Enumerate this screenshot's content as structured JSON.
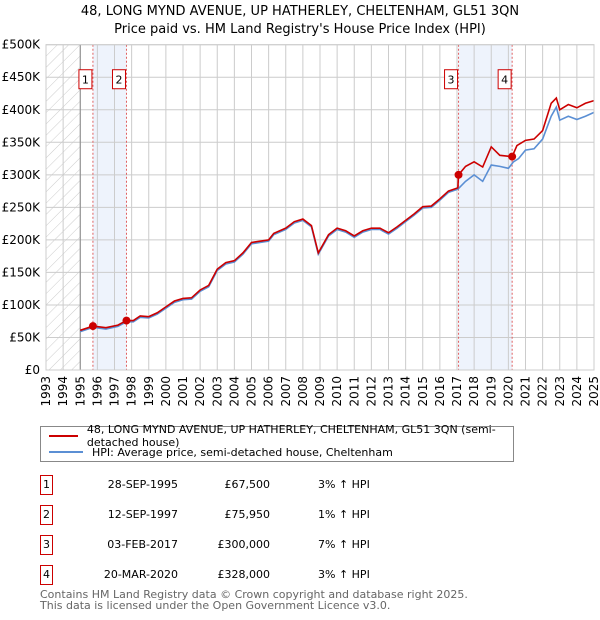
{
  "title_line1": "48, LONG MYND AVENUE, UP HATHERLEY, CHELTENHAM, GL51 3QN",
  "title_line2": "Price paid vs. HM Land Registry's House Price Index (HPI)",
  "chart_data": {
    "type": "line",
    "xlim": [
      1993,
      2025
    ],
    "ylim": [
      0,
      500000
    ],
    "yticks": [
      {
        "v": 0,
        "label": "£0"
      },
      {
        "v": 50000,
        "label": "£50K"
      },
      {
        "v": 100000,
        "label": "£100K"
      },
      {
        "v": 150000,
        "label": "£150K"
      },
      {
        "v": 200000,
        "label": "£200K"
      },
      {
        "v": 250000,
        "label": "£250K"
      },
      {
        "v": 300000,
        "label": "£300K"
      },
      {
        "v": 350000,
        "label": "£350K"
      },
      {
        "v": 400000,
        "label": "£400K"
      },
      {
        "v": 450000,
        "label": "£450K"
      },
      {
        "v": 500000,
        "label": "£500K"
      }
    ],
    "xticks": [
      "1993",
      "1994",
      "1995",
      "1996",
      "1997",
      "1998",
      "1999",
      "2000",
      "2001",
      "2002",
      "2003",
      "2004",
      "2005",
      "2006",
      "2007",
      "2008",
      "2009",
      "2010",
      "2011",
      "2012",
      "2013",
      "2014",
      "2015",
      "2016",
      "2017",
      "2018",
      "2019",
      "2020",
      "2021",
      "2022",
      "2023",
      "2024",
      "2025"
    ],
    "grid": true,
    "series": [
      {
        "name": "48, LONG MYND AVENUE, UP HATHERLEY, CHELTENHAM, GL51 3QN (semi-detached house)",
        "color": "#cc0000",
        "points": [
          [
            1995,
            61000
          ],
          [
            1995.75,
            67500
          ],
          [
            1996.5,
            65000
          ],
          [
            1997.2,
            69000
          ],
          [
            1997.7,
            76000
          ],
          [
            1998.1,
            76000
          ],
          [
            1998.5,
            83000
          ],
          [
            1999,
            82000
          ],
          [
            1999.5,
            88000
          ],
          [
            2000,
            97000
          ],
          [
            2000.5,
            106000
          ],
          [
            2001,
            110000
          ],
          [
            2001.5,
            111000
          ],
          [
            2002,
            123000
          ],
          [
            2002.5,
            130000
          ],
          [
            2003,
            155000
          ],
          [
            2003.5,
            165000
          ],
          [
            2004,
            168000
          ],
          [
            2004.5,
            180000
          ],
          [
            2005,
            196000
          ],
          [
            2005.5,
            198000
          ],
          [
            2006,
            200000
          ],
          [
            2006.3,
            210000
          ],
          [
            2007,
            218000
          ],
          [
            2007.5,
            228000
          ],
          [
            2008,
            232000
          ],
          [
            2008.5,
            222000
          ],
          [
            2008.9,
            180000
          ],
          [
            2009.5,
            208000
          ],
          [
            2010,
            218000
          ],
          [
            2010.5,
            214000
          ],
          [
            2011,
            206000
          ],
          [
            2011.5,
            214000
          ],
          [
            2012,
            218000
          ],
          [
            2012.5,
            218000
          ],
          [
            2013,
            211000
          ],
          [
            2013.5,
            220000
          ],
          [
            2014,
            230000
          ],
          [
            2014.5,
            240000
          ],
          [
            2015,
            251000
          ],
          [
            2015.5,
            252000
          ],
          [
            2016,
            263000
          ],
          [
            2016.5,
            275000
          ],
          [
            2017.05,
            280000
          ],
          [
            2017.09,
            300000
          ],
          [
            2017.5,
            313000
          ],
          [
            2018,
            320000
          ],
          [
            2018.5,
            312000
          ],
          [
            2019,
            343000
          ],
          [
            2019.5,
            330000
          ],
          [
            2020.22,
            328000
          ],
          [
            2020.5,
            345000
          ],
          [
            2021,
            353000
          ],
          [
            2021.5,
            355000
          ],
          [
            2022,
            368000
          ],
          [
            2022.5,
            410000
          ],
          [
            2022.8,
            418000
          ],
          [
            2023,
            400000
          ],
          [
            2023.5,
            408000
          ],
          [
            2024,
            403000
          ],
          [
            2024.5,
            410000
          ],
          [
            2025,
            414000
          ]
        ]
      },
      {
        "name": "HPI: Average price, semi-detached house, Cheltenham",
        "color": "#5b8fd4",
        "points": [
          [
            1995,
            59000
          ],
          [
            1995.75,
            65500
          ],
          [
            1996.5,
            63000
          ],
          [
            1997.2,
            67000
          ],
          [
            1997.7,
            74000
          ],
          [
            1998.1,
            74000
          ],
          [
            1998.5,
            81000
          ],
          [
            1999,
            80000
          ],
          [
            1999.5,
            86000
          ],
          [
            2000,
            95000
          ],
          [
            2000.5,
            104000
          ],
          [
            2001,
            108000
          ],
          [
            2001.5,
            109000
          ],
          [
            2002,
            121000
          ],
          [
            2002.5,
            128000
          ],
          [
            2003,
            153000
          ],
          [
            2003.5,
            163000
          ],
          [
            2004,
            166000
          ],
          [
            2004.5,
            178000
          ],
          [
            2005,
            194000
          ],
          [
            2005.5,
            196000
          ],
          [
            2006,
            198000
          ],
          [
            2006.3,
            208000
          ],
          [
            2007,
            216000
          ],
          [
            2007.5,
            226000
          ],
          [
            2008,
            230000
          ],
          [
            2008.5,
            220000
          ],
          [
            2008.9,
            178000
          ],
          [
            2009.5,
            206000
          ],
          [
            2010,
            216000
          ],
          [
            2010.5,
            212000
          ],
          [
            2011,
            204000
          ],
          [
            2011.5,
            212000
          ],
          [
            2012,
            216000
          ],
          [
            2012.5,
            216000
          ],
          [
            2013,
            209000
          ],
          [
            2013.5,
            218000
          ],
          [
            2014,
            228000
          ],
          [
            2014.5,
            238000
          ],
          [
            2015,
            249000
          ],
          [
            2015.5,
            250000
          ],
          [
            2016,
            261000
          ],
          [
            2016.5,
            273000
          ],
          [
            2017.05,
            278000
          ],
          [
            2017.5,
            290000
          ],
          [
            2018,
            300000
          ],
          [
            2018.5,
            290000
          ],
          [
            2019,
            315000
          ],
          [
            2019.5,
            313000
          ],
          [
            2020,
            310000
          ],
          [
            2020.3,
            320000
          ],
          [
            2020.6,
            325000
          ],
          [
            2021,
            338000
          ],
          [
            2021.5,
            340000
          ],
          [
            2022,
            355000
          ],
          [
            2022.5,
            390000
          ],
          [
            2022.8,
            404000
          ],
          [
            2023,
            384000
          ],
          [
            2023.5,
            390000
          ],
          [
            2024,
            385000
          ],
          [
            2024.5,
            390000
          ],
          [
            2025,
            396000
          ]
        ]
      }
    ],
    "sales": [
      {
        "n": "1",
        "x": 1995.74,
        "y": 67500
      },
      {
        "n": "2",
        "x": 1997.7,
        "y": 75950
      },
      {
        "n": "3",
        "x": 2017.09,
        "y": 300000
      },
      {
        "n": "4",
        "x": 2020.22,
        "y": 328000
      }
    ],
    "shaded_ranges": [
      [
        1995.74,
        1997.7
      ],
      [
        2017.09,
        2020.22
      ]
    ],
    "hatched_before": 1995,
    "legend_position": "below"
  },
  "legend": [
    {
      "label": "48, LONG MYND AVENUE, UP HATHERLEY, CHELTENHAM, GL51 3QN (semi-detached house)",
      "color": "#cc0000"
    },
    {
      "label": "HPI: Average price, semi-detached house, Cheltenham",
      "color": "#5b8fd4"
    }
  ],
  "transactions": [
    {
      "n": "1",
      "date": "28-SEP-1995",
      "price": "£67,500",
      "hpi": "3% ↑ HPI"
    },
    {
      "n": "2",
      "date": "12-SEP-1997",
      "price": "£75,950",
      "hpi": "1% ↑ HPI"
    },
    {
      "n": "3",
      "date": "03-FEB-2017",
      "price": "£300,000",
      "hpi": "7% ↑ HPI"
    },
    {
      "n": "4",
      "date": "20-MAR-2020",
      "price": "£328,000",
      "hpi": "3% ↑ HPI"
    }
  ],
  "footer_line1": "Contains HM Land Registry data © Crown copyright and database right 2025.",
  "footer_line2": "This data is licensed under the Open Government Licence v3.0."
}
